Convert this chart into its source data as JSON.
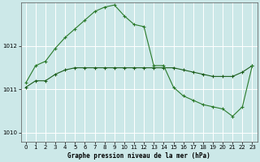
{
  "title": "Graphe pression niveau de la mer (hPa)",
  "bg_color": "#cce8e8",
  "grid_color": "#ffffff",
  "xlim": [
    -0.5,
    23.5
  ],
  "ylim": [
    1009.8,
    1013.0
  ],
  "yticks": [
    1010,
    1011,
    1012
  ],
  "xticks": [
    0,
    1,
    2,
    3,
    4,
    5,
    6,
    7,
    8,
    9,
    10,
    11,
    12,
    13,
    14,
    15,
    16,
    17,
    18,
    19,
    20,
    21,
    22,
    23
  ],
  "series1_x": [
    0,
    1,
    2,
    3,
    4,
    5,
    6,
    7,
    8,
    9,
    10,
    11,
    12,
    13,
    14,
    15,
    16,
    17,
    18,
    19,
    20,
    21,
    22,
    23
  ],
  "series1_y": [
    1011.15,
    1011.55,
    1011.65,
    1011.95,
    1012.2,
    1012.4,
    1012.6,
    1012.8,
    1012.9,
    1012.95,
    1012.7,
    1012.5,
    1012.45,
    1011.55,
    1011.55,
    1011.05,
    1010.85,
    1010.75,
    1010.65,
    1010.6,
    1010.55,
    1010.38,
    1010.6,
    1011.55
  ],
  "series2_x": [
    0,
    1,
    2,
    3,
    4,
    5,
    6,
    7,
    8,
    9,
    10,
    11,
    12,
    13,
    14,
    15,
    16,
    17,
    18,
    19,
    20,
    21,
    22,
    23
  ],
  "series2_y": [
    1011.05,
    1011.2,
    1011.2,
    1011.35,
    1011.45,
    1011.5,
    1011.5,
    1011.5,
    1011.5,
    1011.5,
    1011.5,
    1011.5,
    1011.5,
    1011.5,
    1011.5,
    1011.5,
    1011.45,
    1011.4,
    1011.35,
    1011.3,
    1011.3,
    1011.3,
    1011.4,
    1011.55
  ],
  "line1_color": "#2a7a2a",
  "line2_color": "#1a5c1a"
}
